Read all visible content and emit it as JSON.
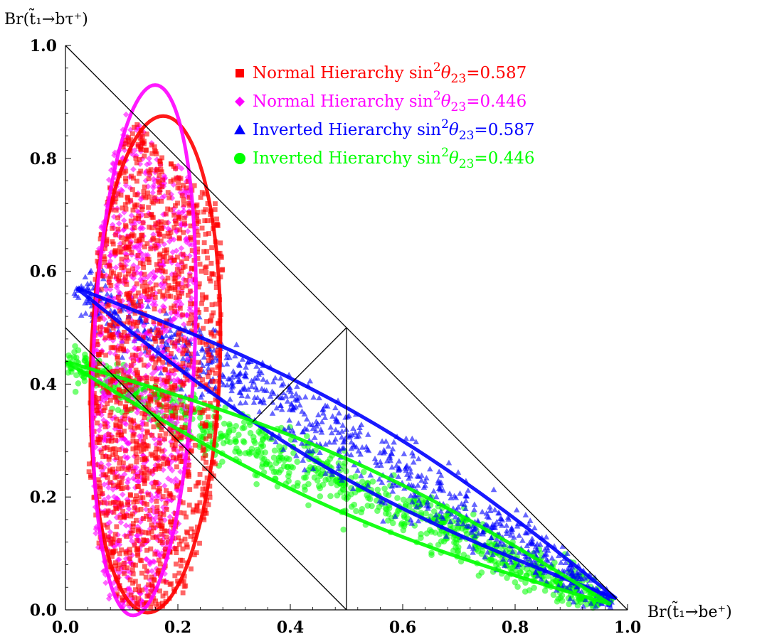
{
  "chart_data": {
    "type": "scatter",
    "title": "",
    "xlabel": "Br(t̃₁→be⁺)",
    "ylabel": "Br(t̃₁→bτ⁺)",
    "xlim": [
      0,
      1
    ],
    "ylim": [
      0,
      1
    ],
    "x_ticks": [
      "0.0",
      "0.2",
      "0.4",
      "0.6",
      "0.8",
      "1.0"
    ],
    "y_ticks": [
      "0.0",
      "0.2",
      "0.4",
      "0.6",
      "0.8",
      "1.0"
    ],
    "grid": false,
    "legend_position": "top-right",
    "reference_lines": [
      {
        "name": "x+y=1 boundary",
        "from": [
          0,
          1
        ],
        "to": [
          1,
          0
        ]
      },
      {
        "name": "equal-branching line",
        "from": [
          0,
          0.5
        ],
        "to": [
          0.5,
          0
        ]
      },
      {
        "name": "equal-branching line",
        "from": [
          0.5,
          0
        ],
        "to": [
          0.5,
          0.5
        ]
      },
      {
        "name": "equal-branching line",
        "from": [
          0.5,
          0.5
        ],
        "to": [
          0.333,
          0.333
        ]
      }
    ],
    "series": [
      {
        "name": "Normal Hierarchy sin²θ₂₃=0.587",
        "legend_main": "Normal Hierarchy sin",
        "legend_sub": "23",
        "legend_value": "=0.587",
        "marker": "square",
        "color": "#ff0000",
        "x_range": [
          0.0,
          0.3
        ],
        "y_range": [
          0.0,
          0.96
        ],
        "contour": {
          "center": [
            0.16,
            0.435
          ],
          "semi_axes": [
            0.115,
            0.44
          ],
          "tilt_deg": 6
        }
      },
      {
        "name": "Normal Hierarchy sin²θ₂₃=0.446",
        "legend_main": "Normal Hierarchy sin",
        "legend_sub": "23",
        "legend_value": "=0.446",
        "marker": "diamond",
        "color": "#ff00ff",
        "x_range": [
          0.0,
          0.33
        ],
        "y_range": [
          0.0,
          0.92
        ],
        "contour": {
          "center": [
            0.14,
            0.46
          ],
          "semi_axes": [
            0.09,
            0.47
          ],
          "tilt_deg": 8
        }
      },
      {
        "name": "Inverted Hierarchy sin²θ₂₃=0.587",
        "legend_main": "Inverted Hierarchy sin",
        "legend_sub": "23",
        "legend_value": "=0.587",
        "marker": "triangle",
        "color": "#0000ff",
        "x_range": [
          0.02,
          0.99
        ],
        "y_range": [
          0.0,
          0.6
        ],
        "contour": {
          "endpoints": [
            [
              0.02,
              0.57
            ],
            [
              0.98,
              0.02
            ]
          ],
          "half_width": 0.055
        }
      },
      {
        "name": "Inverted Hierarchy sin²θ₂₃=0.446",
        "legend_main": "Inverted Hierarchy sin",
        "legend_sub": "23",
        "legend_value": "=0.446",
        "marker": "circle",
        "color": "#00ff00",
        "x_range": [
          0.0,
          0.98
        ],
        "y_range": [
          0.0,
          0.46
        ],
        "contour": {
          "endpoints": [
            [
              0.0,
              0.44
            ],
            [
              0.97,
              0.01
            ]
          ],
          "half_width": 0.045
        }
      }
    ]
  }
}
